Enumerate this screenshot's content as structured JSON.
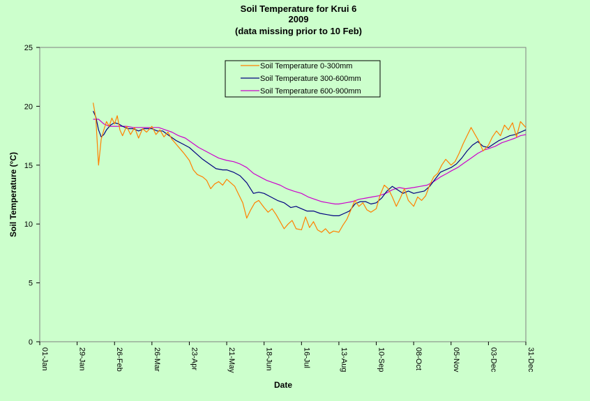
{
  "chart_data": {
    "type": "line",
    "title": [
      "Soil Temperature for Krui 6",
      "2009",
      "(data missing prior to 10 Feb)"
    ],
    "xlabel": "Date",
    "ylabel": "Soil Temperature (°C)",
    "ylim": [
      0,
      25
    ],
    "yticks": [
      0,
      5,
      10,
      15,
      20,
      25
    ],
    "xlim": [
      "01-Jan",
      "31-Dec"
    ],
    "xticks": [
      "01-Jan",
      "29-Jan",
      "26-Feb",
      "26-Mar",
      "23-Apr",
      "21-May",
      "18-Jun",
      "16-Jul",
      "13-Aug",
      "10-Sep",
      "08-Oct",
      "05-Nov",
      "03-Dec",
      "31-Dec"
    ],
    "legend_position": "top-center",
    "grid": false,
    "series": [
      {
        "name": "Soil Temperature  0-300mm",
        "color": "#ff8000",
        "points": [
          [
            "10-Feb",
            20.3
          ],
          [
            "12-Feb",
            19.0
          ],
          [
            "14-Feb",
            15.0
          ],
          [
            "16-Feb",
            17.2
          ],
          [
            "18-Feb",
            18.0
          ],
          [
            "20-Feb",
            18.7
          ],
          [
            "22-Feb",
            18.3
          ],
          [
            "24-Feb",
            19.0
          ],
          [
            "26-Feb",
            18.5
          ],
          [
            "28-Feb",
            19.2
          ],
          [
            "02-Mar",
            18.0
          ],
          [
            "04-Mar",
            17.5
          ],
          [
            "07-Mar",
            18.3
          ],
          [
            "10-Mar",
            17.6
          ],
          [
            "13-Mar",
            18.2
          ],
          [
            "16-Mar",
            17.3
          ],
          [
            "19-Mar",
            18.1
          ],
          [
            "22-Mar",
            17.8
          ],
          [
            "26-Mar",
            18.3
          ],
          [
            "29-Mar",
            17.6
          ],
          [
            "01-Apr",
            18.0
          ],
          [
            "04-Apr",
            17.4
          ],
          [
            "07-Apr",
            17.8
          ],
          [
            "10-Apr",
            17.2
          ],
          [
            "13-Apr",
            16.8
          ],
          [
            "16-Apr",
            16.4
          ],
          [
            "19-Apr",
            16.0
          ],
          [
            "23-Apr",
            15.4
          ],
          [
            "26-Apr",
            14.6
          ],
          [
            "29-Apr",
            14.2
          ],
          [
            "03-May",
            14.0
          ],
          [
            "06-May",
            13.7
          ],
          [
            "09-May",
            13.0
          ],
          [
            "12-May",
            13.4
          ],
          [
            "15-May",
            13.6
          ],
          [
            "18-May",
            13.3
          ],
          [
            "21-May",
            13.8
          ],
          [
            "24-May",
            13.5
          ],
          [
            "27-May",
            13.2
          ],
          [
            "30-May",
            12.5
          ],
          [
            "02-Jun",
            11.8
          ],
          [
            "05-Jun",
            10.5
          ],
          [
            "08-Jun",
            11.2
          ],
          [
            "11-Jun",
            11.8
          ],
          [
            "14-Jun",
            12.0
          ],
          [
            "18-Jun",
            11.4
          ],
          [
            "21-Jun",
            11.0
          ],
          [
            "24-Jun",
            11.3
          ],
          [
            "27-Jun",
            10.8
          ],
          [
            "30-Jun",
            10.2
          ],
          [
            "03-Jul",
            9.6
          ],
          [
            "06-Jul",
            10.0
          ],
          [
            "09-Jul",
            10.3
          ],
          [
            "12-Jul",
            9.6
          ],
          [
            "16-Jul",
            9.5
          ],
          [
            "19-Jul",
            10.6
          ],
          [
            "22-Jul",
            9.7
          ],
          [
            "25-Jul",
            10.2
          ],
          [
            "28-Jul",
            9.5
          ],
          [
            "31-Jul",
            9.3
          ],
          [
            "03-Aug",
            9.6
          ],
          [
            "06-Aug",
            9.2
          ],
          [
            "09-Aug",
            9.4
          ],
          [
            "13-Aug",
            9.3
          ],
          [
            "16-Aug",
            9.9
          ],
          [
            "19-Aug",
            10.4
          ],
          [
            "22-Aug",
            11.2
          ],
          [
            "25-Aug",
            12.0
          ],
          [
            "28-Aug",
            11.5
          ],
          [
            "31-Aug",
            11.8
          ],
          [
            "03-Sep",
            11.2
          ],
          [
            "06-Sep",
            11.0
          ],
          [
            "10-Sep",
            11.3
          ],
          [
            "13-Sep",
            12.5
          ],
          [
            "16-Sep",
            13.3
          ],
          [
            "19-Sep",
            13.0
          ],
          [
            "22-Sep",
            12.3
          ],
          [
            "25-Sep",
            11.5
          ],
          [
            "28-Sep",
            12.2
          ],
          [
            "01-Oct",
            13.0
          ],
          [
            "04-Oct",
            12.0
          ],
          [
            "08-Oct",
            11.5
          ],
          [
            "11-Oct",
            12.3
          ],
          [
            "14-Oct",
            12.0
          ],
          [
            "17-Oct",
            12.4
          ],
          [
            "20-Oct",
            13.3
          ],
          [
            "23-Oct",
            14.0
          ],
          [
            "26-Oct",
            14.3
          ],
          [
            "29-Oct",
            15.0
          ],
          [
            "01-Nov",
            15.5
          ],
          [
            "05-Nov",
            15.0
          ],
          [
            "08-Nov",
            15.3
          ],
          [
            "11-Nov",
            16.0
          ],
          [
            "14-Nov",
            16.8
          ],
          [
            "17-Nov",
            17.5
          ],
          [
            "20-Nov",
            18.2
          ],
          [
            "23-Nov",
            17.6
          ],
          [
            "26-Nov",
            17.0
          ],
          [
            "29-Nov",
            16.2
          ],
          [
            "03-Dec",
            16.7
          ],
          [
            "06-Dec",
            17.4
          ],
          [
            "09-Dec",
            17.9
          ],
          [
            "12-Dec",
            17.5
          ],
          [
            "15-Dec",
            18.4
          ],
          [
            "18-Dec",
            18.0
          ],
          [
            "21-Dec",
            18.6
          ],
          [
            "24-Dec",
            17.4
          ],
          [
            "27-Dec",
            18.7
          ],
          [
            "31-Dec",
            18.2
          ]
        ]
      },
      {
        "name": "Soil Temperature 300-600mm",
        "color": "#000080",
        "points": [
          [
            "10-Feb",
            19.6
          ],
          [
            "12-Feb",
            19.1
          ],
          [
            "14-Feb",
            18.0
          ],
          [
            "16-Feb",
            17.4
          ],
          [
            "18-Feb",
            17.6
          ],
          [
            "20-Feb",
            18.0
          ],
          [
            "23-Feb",
            18.4
          ],
          [
            "26-Feb",
            18.6
          ],
          [
            "01-Mar",
            18.5
          ],
          [
            "04-Mar",
            18.3
          ],
          [
            "08-Mar",
            18.1
          ],
          [
            "12-Mar",
            18.1
          ],
          [
            "16-Mar",
            17.9
          ],
          [
            "20-Mar",
            18.1
          ],
          [
            "26-Mar",
            18.1
          ],
          [
            "30-Mar",
            17.9
          ],
          [
            "03-Apr",
            17.9
          ],
          [
            "08-Apr",
            17.5
          ],
          [
            "13-Apr",
            17.1
          ],
          [
            "18-Apr",
            16.8
          ],
          [
            "23-Apr",
            16.5
          ],
          [
            "28-Apr",
            16.0
          ],
          [
            "03-May",
            15.5
          ],
          [
            "08-May",
            15.1
          ],
          [
            "13-May",
            14.7
          ],
          [
            "18-May",
            14.6
          ],
          [
            "21-May",
            14.6
          ],
          [
            "26-May",
            14.4
          ],
          [
            "31-May",
            14.1
          ],
          [
            "05-Jun",
            13.5
          ],
          [
            "10-Jun",
            12.6
          ],
          [
            "14-Jun",
            12.7
          ],
          [
            "18-Jun",
            12.6
          ],
          [
            "23-Jun",
            12.3
          ],
          [
            "28-Jun",
            12.0
          ],
          [
            "03-Jul",
            11.8
          ],
          [
            "08-Jul",
            11.4
          ],
          [
            "12-Jul",
            11.5
          ],
          [
            "16-Jul",
            11.3
          ],
          [
            "20-Jul",
            11.1
          ],
          [
            "25-Jul",
            11.1
          ],
          [
            "30-Jul",
            10.9
          ],
          [
            "04-Aug",
            10.8
          ],
          [
            "09-Aug",
            10.7
          ],
          [
            "13-Aug",
            10.7
          ],
          [
            "17-Aug",
            10.9
          ],
          [
            "21-Aug",
            11.1
          ],
          [
            "25-Aug",
            11.7
          ],
          [
            "29-Aug",
            11.9
          ],
          [
            "02-Sep",
            11.9
          ],
          [
            "06-Sep",
            11.7
          ],
          [
            "10-Sep",
            11.8
          ],
          [
            "14-Sep",
            12.2
          ],
          [
            "18-Sep",
            12.8
          ],
          [
            "22-Sep",
            13.2
          ],
          [
            "26-Sep",
            12.9
          ],
          [
            "30-Sep",
            12.6
          ],
          [
            "04-Oct",
            12.8
          ],
          [
            "08-Oct",
            12.6
          ],
          [
            "12-Oct",
            12.7
          ],
          [
            "16-Oct",
            12.8
          ],
          [
            "20-Oct",
            13.2
          ],
          [
            "24-Oct",
            13.8
          ],
          [
            "28-Oct",
            14.4
          ],
          [
            "01-Nov",
            14.6
          ],
          [
            "05-Nov",
            14.8
          ],
          [
            "09-Nov",
            15.1
          ],
          [
            "13-Nov",
            15.6
          ],
          [
            "17-Nov",
            16.2
          ],
          [
            "21-Nov",
            16.7
          ],
          [
            "25-Nov",
            17.0
          ],
          [
            "29-Nov",
            16.6
          ],
          [
            "03-Dec",
            16.5
          ],
          [
            "07-Dec",
            16.8
          ],
          [
            "11-Dec",
            17.1
          ],
          [
            "15-Dec",
            17.3
          ],
          [
            "19-Dec",
            17.5
          ],
          [
            "23-Dec",
            17.6
          ],
          [
            "27-Dec",
            17.8
          ],
          [
            "31-Dec",
            18.0
          ]
        ]
      },
      {
        "name": "Soil Temperature 600-900mm",
        "color": "#cc00cc",
        "points": [
          [
            "10-Feb",
            18.9
          ],
          [
            "14-Feb",
            18.9
          ],
          [
            "18-Feb",
            18.5
          ],
          [
            "22-Feb",
            18.3
          ],
          [
            "26-Feb",
            18.3
          ],
          [
            "02-Mar",
            18.3
          ],
          [
            "07-Mar",
            18.3
          ],
          [
            "12-Mar",
            18.2
          ],
          [
            "17-Mar",
            18.2
          ],
          [
            "22-Mar",
            18.2
          ],
          [
            "26-Mar",
            18.2
          ],
          [
            "31-Mar",
            18.2
          ],
          [
            "05-Apr",
            18.0
          ],
          [
            "10-Apr",
            17.8
          ],
          [
            "15-Apr",
            17.5
          ],
          [
            "20-Apr",
            17.3
          ],
          [
            "25-Apr",
            16.9
          ],
          [
            "30-Apr",
            16.5
          ],
          [
            "05-May",
            16.2
          ],
          [
            "10-May",
            15.9
          ],
          [
            "15-May",
            15.6
          ],
          [
            "21-May",
            15.4
          ],
          [
            "26-May",
            15.3
          ],
          [
            "31-May",
            15.1
          ],
          [
            "05-Jun",
            14.8
          ],
          [
            "10-Jun",
            14.3
          ],
          [
            "15-Jun",
            14.0
          ],
          [
            "20-Jun",
            13.7
          ],
          [
            "25-Jun",
            13.5
          ],
          [
            "30-Jun",
            13.3
          ],
          [
            "05-Jul",
            13.0
          ],
          [
            "10-Jul",
            12.8
          ],
          [
            "16-Jul",
            12.6
          ],
          [
            "21-Jul",
            12.3
          ],
          [
            "26-Jul",
            12.1
          ],
          [
            "31-Jul",
            11.9
          ],
          [
            "05-Aug",
            11.8
          ],
          [
            "10-Aug",
            11.7
          ],
          [
            "13-Aug",
            11.7
          ],
          [
            "18-Aug",
            11.8
          ],
          [
            "23-Aug",
            11.9
          ],
          [
            "28-Aug",
            12.1
          ],
          [
            "02-Sep",
            12.2
          ],
          [
            "07-Sep",
            12.3
          ],
          [
            "12-Sep",
            12.4
          ],
          [
            "17-Sep",
            12.6
          ],
          [
            "22-Sep",
            12.9
          ],
          [
            "27-Sep",
            13.1
          ],
          [
            "02-Oct",
            13.0
          ],
          [
            "08-Oct",
            13.1
          ],
          [
            "13-Oct",
            13.2
          ],
          [
            "18-Oct",
            13.3
          ],
          [
            "23-Oct",
            13.6
          ],
          [
            "28-Oct",
            14.0
          ],
          [
            "02-Nov",
            14.3
          ],
          [
            "05-Nov",
            14.5
          ],
          [
            "10-Nov",
            14.8
          ],
          [
            "15-Nov",
            15.2
          ],
          [
            "20-Nov",
            15.6
          ],
          [
            "25-Nov",
            16.0
          ],
          [
            "30-Nov",
            16.3
          ],
          [
            "03-Dec",
            16.4
          ],
          [
            "08-Dec",
            16.6
          ],
          [
            "13-Dec",
            16.9
          ],
          [
            "18-Dec",
            17.1
          ],
          [
            "23-Dec",
            17.3
          ],
          [
            "27-Dec",
            17.5
          ],
          [
            "31-Dec",
            17.6
          ]
        ]
      }
    ]
  }
}
